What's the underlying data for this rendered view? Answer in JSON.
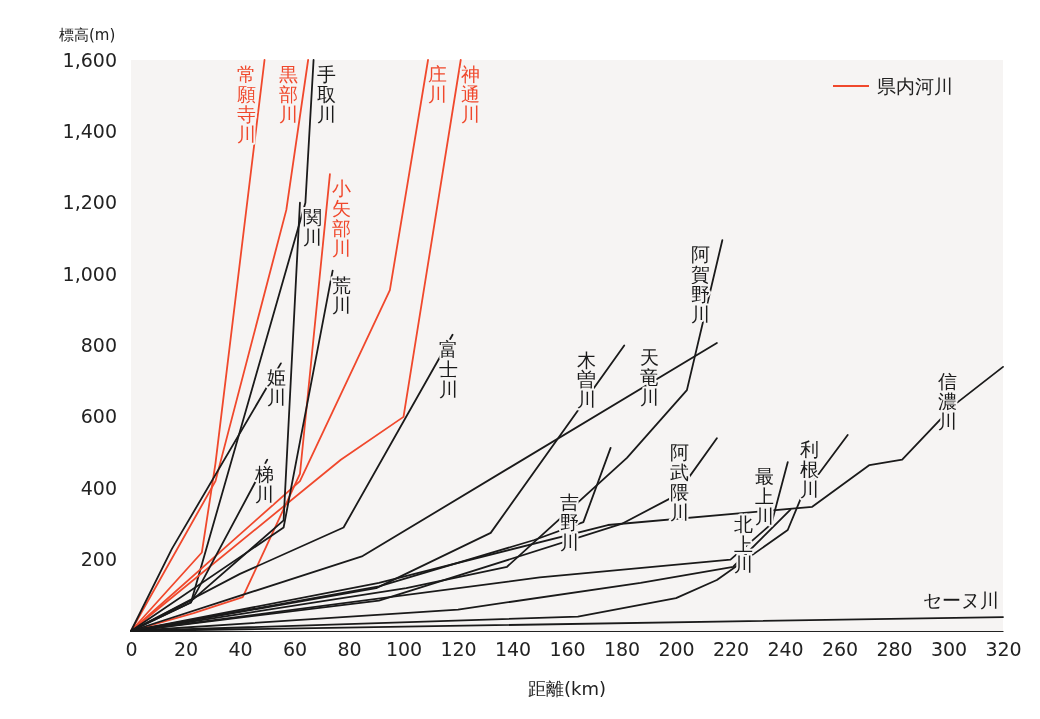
{
  "chart_data": {
    "type": "line",
    "xlabel": "距離(km)",
    "ylabel": "標高(m)",
    "legend_title": "県内河川",
    "legend": "top right",
    "xlim": [
      0,
      320
    ],
    "xticks": [
      0,
      20,
      40,
      60,
      80,
      100,
      120,
      140,
      160,
      180,
      200,
      220,
      240,
      260,
      280,
      300,
      320
    ],
    "ylim": [
      0,
      1600
    ],
    "yticks": [
      {
        "value": 200,
        "label": "200"
      },
      {
        "value": 400,
        "label": "400"
      },
      {
        "value": 600,
        "label": "600"
      },
      {
        "value": 800,
        "label": "800"
      },
      {
        "value": 1000,
        "label": "1,000"
      },
      {
        "value": 1200,
        "label": "1,200"
      },
      {
        "value": 1400,
        "label": "1,400"
      },
      {
        "value": 1600,
        "label": "1,600"
      }
    ],
    "series": [
      {
        "name": "常願寺川",
        "color": "#f0482c",
        "x": [
          0,
          26,
          31,
          49
        ],
        "values": [
          0,
          220,
          470,
          1600
        ]
      },
      {
        "name": "黒部川",
        "color": "#f0482c",
        "x": [
          0,
          31,
          57,
          65
        ],
        "values": [
          0,
          420,
          1180,
          1600
        ]
      },
      {
        "name": "手取川",
        "color": "#1a1a1a",
        "x": [
          0,
          22,
          64,
          67
        ],
        "values": [
          0,
          80,
          1200,
          1600
        ]
      },
      {
        "name": "庄川",
        "color": "#f0482c",
        "x": [
          0,
          62,
          95,
          109
        ],
        "values": [
          0,
          420,
          955,
          1600
        ]
      },
      {
        "name": "神通川",
        "color": "#f0482c",
        "x": [
          0,
          77,
          100,
          121
        ],
        "values": [
          0,
          480,
          600,
          1600
        ]
      },
      {
        "name": "小矢部川",
        "color": "#f0482c",
        "x": [
          0,
          23,
          41,
          62,
          73
        ],
        "values": [
          0,
          50,
          95,
          440,
          1280
        ]
      },
      {
        "name": "関川",
        "color": "#1a1a1a",
        "x": [
          0,
          23,
          56,
          62
        ],
        "values": [
          0,
          90,
          310,
          1200
        ]
      },
      {
        "name": "荒川",
        "color": "#1a1a1a",
        "x": [
          0,
          56,
          74
        ],
        "values": [
          0,
          290,
          1010
        ]
      },
      {
        "name": "姫川",
        "color": "#1a1a1a",
        "x": [
          0,
          15,
          55
        ],
        "values": [
          0,
          230,
          750
        ]
      },
      {
        "name": "梯川",
        "color": "#1a1a1a",
        "x": [
          0,
          22,
          50
        ],
        "values": [
          0,
          80,
          480
        ]
      },
      {
        "name": "富士川",
        "color": "#1a1a1a",
        "x": [
          0,
          40,
          78,
          118
        ],
        "values": [
          0,
          160,
          290,
          830
        ]
      },
      {
        "name": "木曽川",
        "color": "#1a1a1a",
        "x": [
          0,
          90,
          132,
          181
        ],
        "values": [
          0,
          120,
          275,
          800
        ]
      },
      {
        "name": "天竜川",
        "color": "#1a1a1a",
        "x": [
          0,
          85,
          215
        ],
        "values": [
          0,
          210,
          807
        ]
      },
      {
        "name": "阿賀野川",
        "color": "#1a1a1a",
        "x": [
          0,
          101,
          138,
          182,
          204,
          217
        ],
        "values": [
          0,
          120,
          180,
          485,
          675,
          1095
        ]
      },
      {
        "name": "吉野川",
        "color": "#1a1a1a",
        "x": [
          0,
          91,
          148,
          166,
          176
        ],
        "values": [
          0,
          125,
          255,
          305,
          513
        ]
      },
      {
        "name": "阿武隈川",
        "color": "#1a1a1a",
        "x": [
          0,
          91,
          180,
          200,
          215
        ],
        "values": [
          0,
          85,
          300,
          380,
          540
        ]
      },
      {
        "name": "最上川",
        "color": "#1a1a1a",
        "x": [
          0,
          150,
          220,
          235,
          241
        ],
        "values": [
          0,
          150,
          200,
          300,
          473
        ]
      },
      {
        "name": "利根川",
        "color": "#1a1a1a",
        "x": [
          0,
          164,
          200,
          215,
          241,
          246,
          263
        ],
        "values": [
          0,
          40,
          92,
          143,
          283,
          375,
          549
        ]
      },
      {
        "name": "北上川",
        "color": "#1a1a1a",
        "x": [
          0,
          120,
          187,
          221,
          242
        ],
        "values": [
          0,
          60,
          135,
          180,
          340
        ]
      },
      {
        "name": "信濃川",
        "color": "#1a1a1a",
        "x": [
          0,
          91,
          175,
          250,
          271,
          283,
          302,
          320
        ],
        "values": [
          0,
          135,
          297,
          348,
          465,
          480,
          633,
          740
        ]
      },
      {
        "name": "セーヌ川",
        "color": "#1a1a1a",
        "x": [
          0,
          320
        ],
        "values": [
          0,
          39
        ]
      }
    ]
  }
}
